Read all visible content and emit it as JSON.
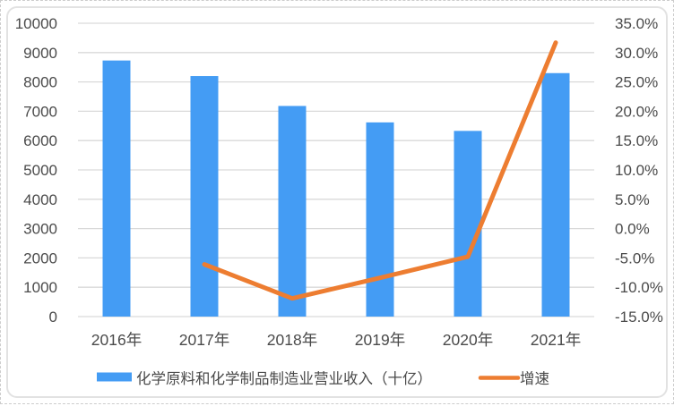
{
  "chart_data": {
    "type": "combo",
    "title": "",
    "categories": [
      "2016年",
      "2017年",
      "2018年",
      "2019年",
      "2020年",
      "2021年"
    ],
    "series": [
      {
        "name": "化学原料和化学制品制造业营业收入（十亿）",
        "type": "bar",
        "axis": "left",
        "color": "#449CF4",
        "values": [
          8730,
          8200,
          7180,
          6620,
          6330,
          8300
        ]
      },
      {
        "name": "增速",
        "type": "line",
        "axis": "right",
        "color": "#ED7D31",
        "values": [
          null,
          -6.1,
          -11.9,
          -8.4,
          -4.8,
          31.7
        ]
      }
    ],
    "left_axis": {
      "min": 0,
      "max": 10000,
      "step": 1000,
      "tick_labels": [
        "10000",
        "9000",
        "8000",
        "7000",
        "6000",
        "5000",
        "4000",
        "3000",
        "2000",
        "1000",
        "0"
      ]
    },
    "right_axis": {
      "min": -15,
      "max": 35,
      "step": 5,
      "tick_labels": [
        "35.0%",
        "30.0%",
        "25.0%",
        "20.0%",
        "15.0%",
        "10.0%",
        "5.0%",
        "0.0%",
        "-5.0%",
        "-10.0%",
        "-15.0%"
      ]
    },
    "grid": true,
    "legend_position": "bottom"
  },
  "colors": {
    "bar": "#449CF4",
    "line": "#ED7D31",
    "gridline": "#D9D9D9",
    "text": "#4A4A4A",
    "frame_border": "#E2E2E2"
  }
}
